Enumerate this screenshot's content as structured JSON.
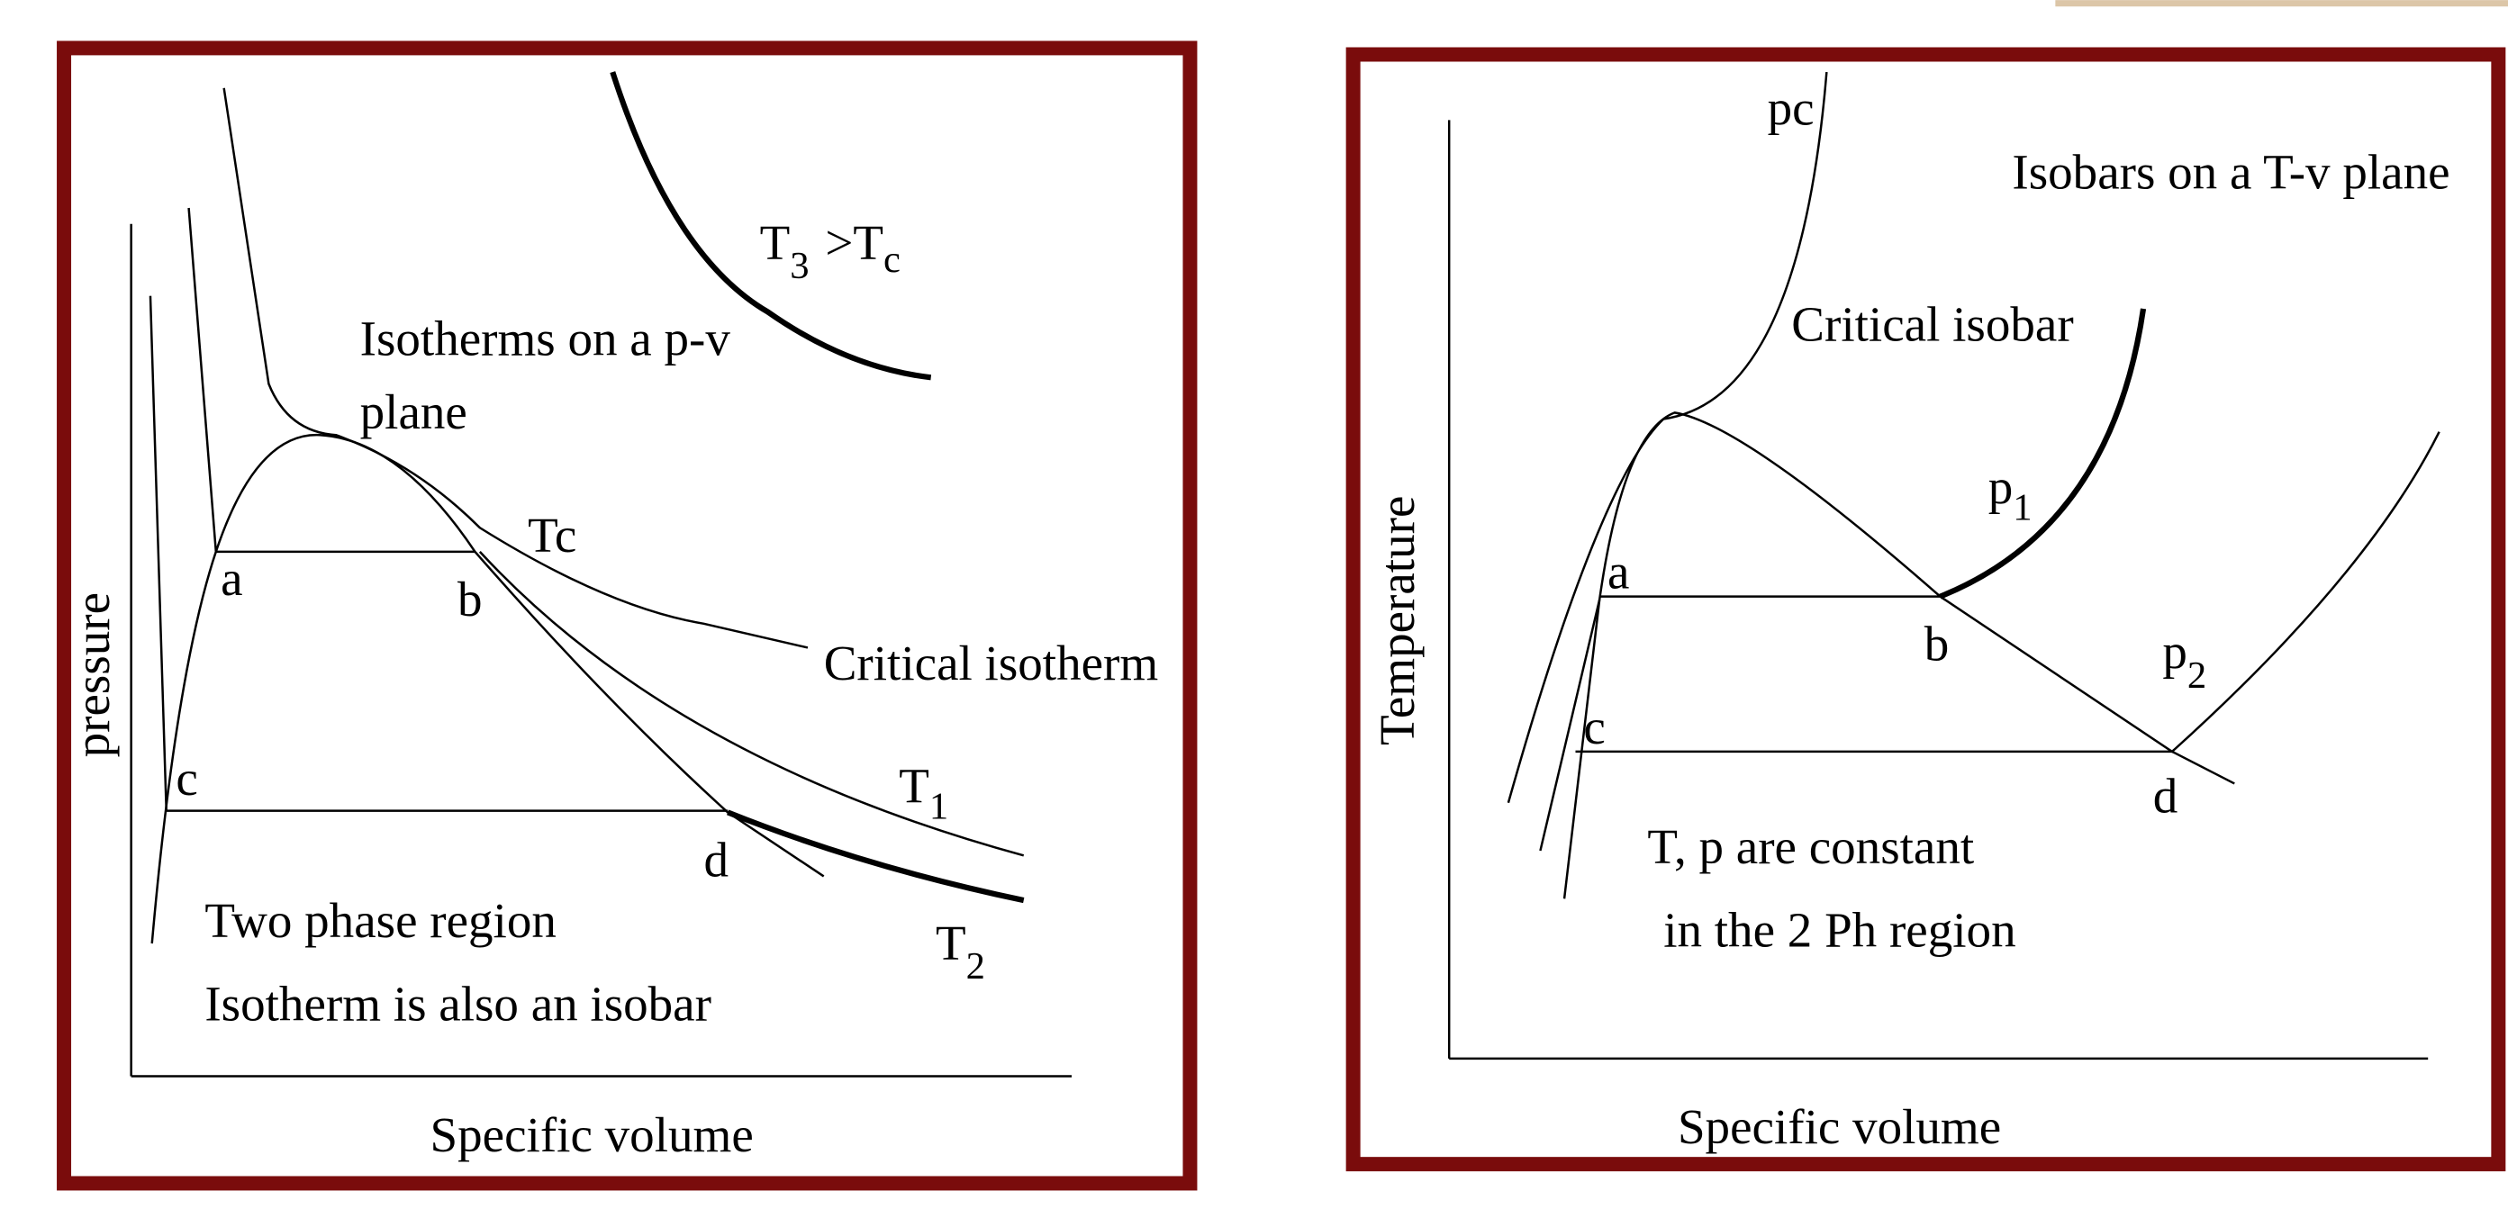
{
  "left_panel": {
    "title": [
      "Isotherms on a p-v",
      "plane"
    ],
    "y_axis": "pressure",
    "x_axis": "Specific volume",
    "tc": "Tc",
    "critical_isotherm": "Critical isotherm",
    "t1": {
      "base": "T",
      "sub": "1"
    },
    "t2": {
      "base": "T",
      "sub": "2"
    },
    "t3": {
      "base": "T",
      "sub": "3",
      "relation": ">T",
      "relation_sub": "c"
    },
    "points": [
      "a",
      "b",
      "c",
      "d"
    ],
    "note": [
      "Two phase region",
      "Isotherm is also an isobar"
    ]
  },
  "right_panel": {
    "title": "Isobars on a T-v plane",
    "y_axis": "Temperature",
    "x_axis": "Specific volume",
    "pc": "pc",
    "critical_isobar": "Critical isobar",
    "p1": {
      "base": "p",
      "sub": "1"
    },
    "p2": {
      "base": "p",
      "sub": "2"
    },
    "points": [
      "a",
      "b",
      "c",
      "d"
    ],
    "note": [
      "T, p are constant",
      "in the 2 Ph region"
    ]
  }
}
